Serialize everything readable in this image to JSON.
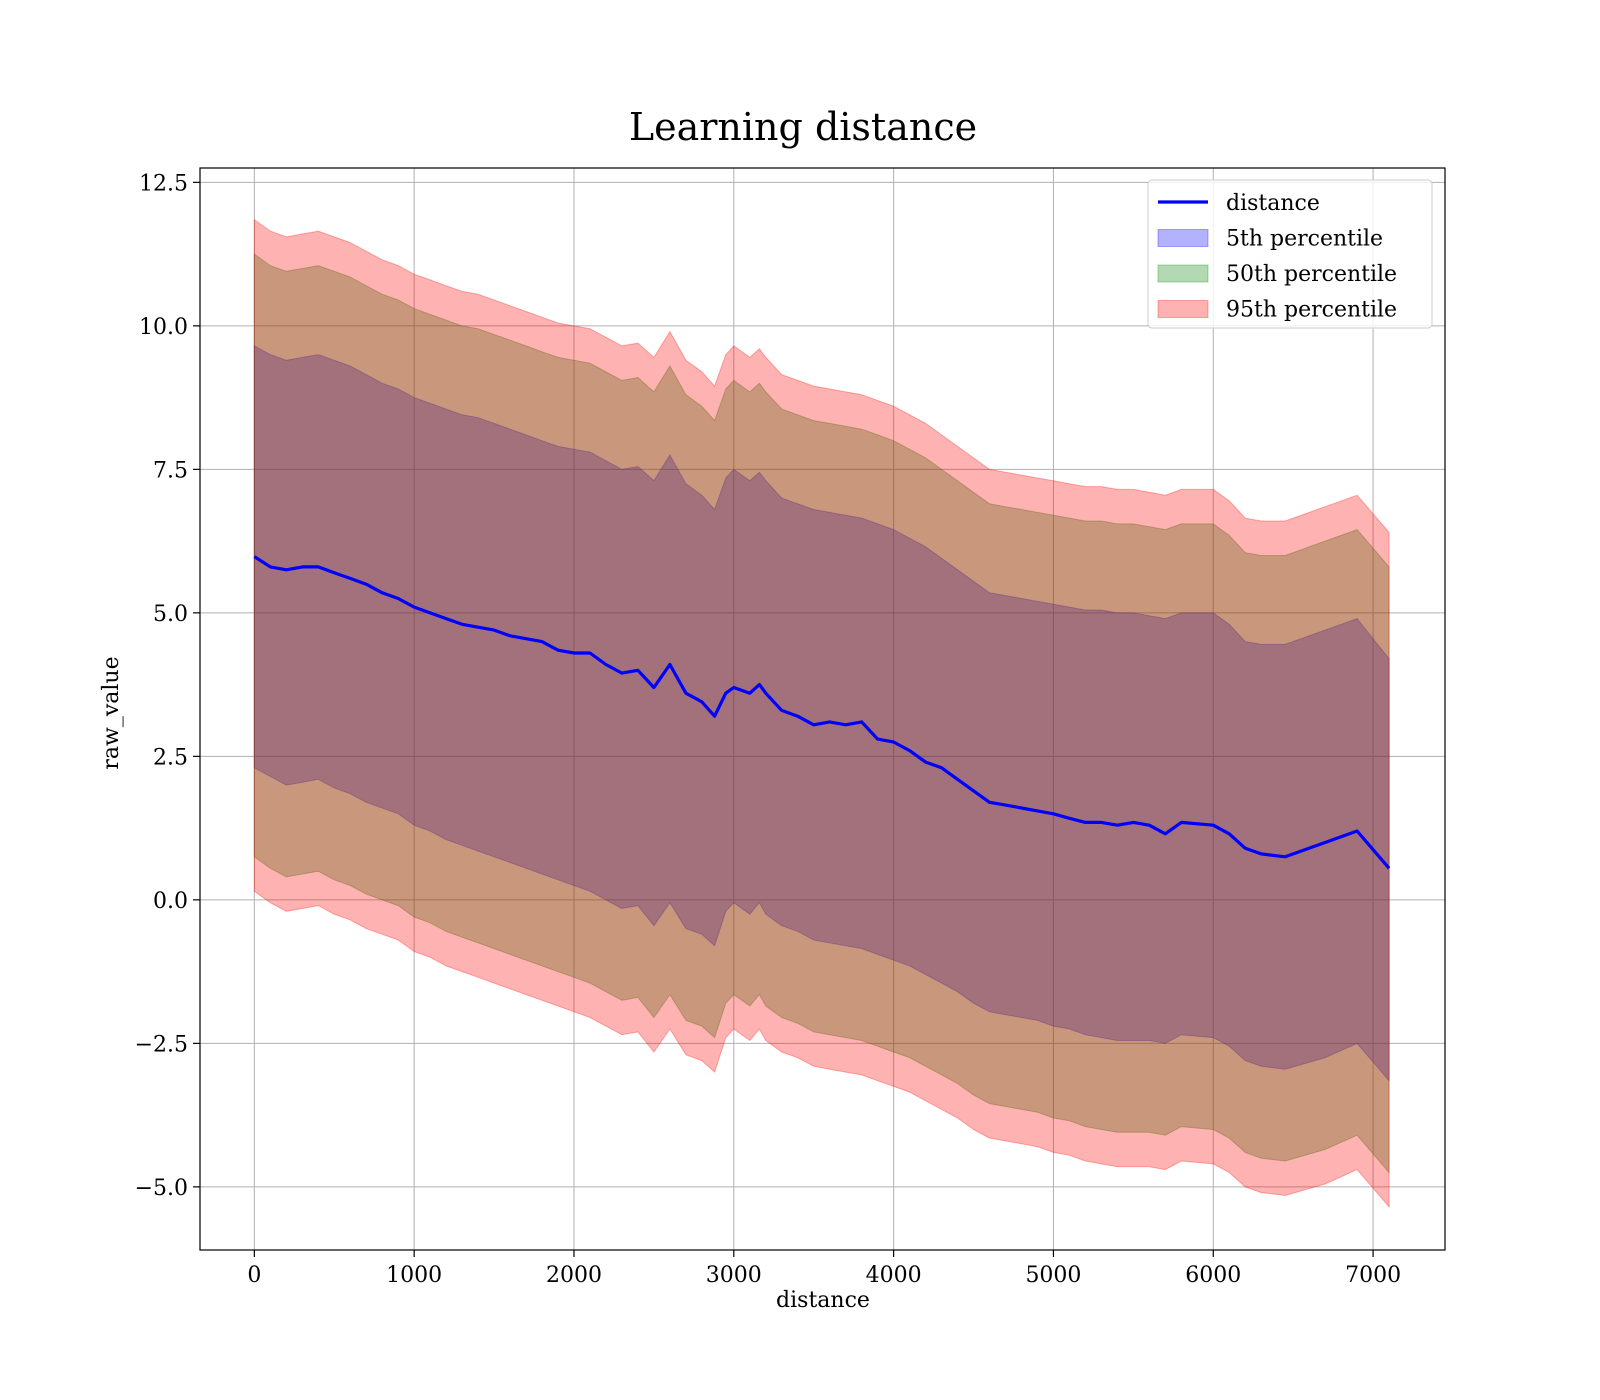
{
  "chart_data": {
    "type": "line",
    "title": "Learning distance",
    "xlabel": "distance",
    "ylabel": "raw_value",
    "xlim": [
      -340,
      7450
    ],
    "ylim": [
      -6.1,
      12.75
    ],
    "xticks": [
      0,
      1000,
      2000,
      3000,
      4000,
      5000,
      6000,
      7000
    ],
    "yticks": [
      -5.0,
      -2.5,
      0.0,
      2.5,
      5.0,
      7.5,
      10.0,
      12.5
    ],
    "xtick_labels": [
      "0",
      "1000",
      "2000",
      "3000",
      "4000",
      "5000",
      "6000",
      "7000"
    ],
    "ytick_labels": [
      "−5.0",
      "−2.5",
      "0.0",
      "2.5",
      "5.0",
      "7.5",
      "10.0",
      "12.5"
    ],
    "grid": true,
    "legend_position": "top-right",
    "x": [
      0,
      100,
      200,
      300,
      400,
      500,
      600,
      700,
      800,
      900,
      1000,
      1100,
      1200,
      1300,
      1400,
      1500,
      1600,
      1700,
      1800,
      1900,
      2000,
      2100,
      2200,
      2300,
      2400,
      2500,
      2600,
      2700,
      2800,
      2880,
      2950,
      3000,
      3100,
      3160,
      3200,
      3300,
      3400,
      3500,
      3600,
      3700,
      3800,
      3900,
      4000,
      4100,
      4200,
      4300,
      4400,
      4500,
      4600,
      4700,
      4800,
      4900,
      5000,
      5100,
      5200,
      5300,
      5400,
      5500,
      5600,
      5700,
      5800,
      6000,
      6100,
      6200,
      6300,
      6450,
      6700,
      6900,
      7100
    ],
    "series": [
      {
        "name": "distance",
        "kind": "line",
        "color": "#0000ff",
        "values": [
          5.98,
          5.8,
          5.75,
          5.8,
          5.8,
          5.7,
          5.6,
          5.5,
          5.35,
          5.25,
          5.1,
          5.0,
          4.9,
          4.8,
          4.75,
          4.7,
          4.6,
          4.55,
          4.5,
          4.35,
          4.3,
          4.3,
          4.1,
          3.95,
          4.0,
          3.7,
          4.1,
          3.6,
          3.45,
          3.2,
          3.6,
          3.7,
          3.6,
          3.75,
          3.6,
          3.3,
          3.2,
          3.05,
          3.1,
          3.05,
          3.1,
          2.8,
          2.75,
          2.6,
          2.4,
          2.3,
          2.1,
          1.9,
          1.7,
          1.65,
          1.6,
          1.55,
          1.5,
          1.42,
          1.35,
          1.35,
          1.3,
          1.35,
          1.3,
          1.15,
          1.35,
          1.3,
          1.15,
          0.9,
          0.8,
          0.75,
          1.0,
          1.2,
          0.55
        ]
      },
      {
        "name": "5th percentile",
        "kind": "band",
        "color": "#0000ff",
        "lower": [
          2.3,
          2.15,
          2.0,
          2.05,
          2.1,
          1.95,
          1.85,
          1.7,
          1.6,
          1.5,
          1.3,
          1.2,
          1.05,
          0.95,
          0.85,
          0.75,
          0.65,
          0.55,
          0.45,
          0.35,
          0.25,
          0.15,
          0.0,
          -0.15,
          -0.1,
          -0.45,
          -0.05,
          -0.5,
          -0.6,
          -0.8,
          -0.2,
          -0.05,
          -0.25,
          -0.05,
          -0.25,
          -0.45,
          -0.55,
          -0.7,
          -0.75,
          -0.8,
          -0.85,
          -0.95,
          -1.05,
          -1.15,
          -1.3,
          -1.45,
          -1.6,
          -1.8,
          -1.95,
          -2.0,
          -2.05,
          -2.1,
          -2.2,
          -2.25,
          -2.35,
          -2.4,
          -2.45,
          -2.45,
          -2.45,
          -2.5,
          -2.35,
          -2.4,
          -2.55,
          -2.8,
          -2.9,
          -2.95,
          -2.75,
          -2.5,
          -3.15
        ],
        "upper": [
          9.65,
          9.5,
          9.4,
          9.45,
          9.5,
          9.4,
          9.3,
          9.15,
          9.0,
          8.9,
          8.75,
          8.65,
          8.55,
          8.45,
          8.4,
          8.3,
          8.2,
          8.1,
          8.0,
          7.9,
          7.85,
          7.8,
          7.65,
          7.5,
          7.55,
          7.3,
          7.75,
          7.25,
          7.05,
          6.8,
          7.35,
          7.5,
          7.3,
          7.45,
          7.3,
          7.0,
          6.9,
          6.8,
          6.75,
          6.7,
          6.65,
          6.55,
          6.45,
          6.3,
          6.15,
          5.95,
          5.75,
          5.55,
          5.35,
          5.3,
          5.25,
          5.2,
          5.15,
          5.1,
          5.05,
          5.05,
          5.0,
          5.0,
          4.95,
          4.9,
          5.0,
          5.0,
          4.8,
          4.5,
          4.45,
          4.45,
          4.7,
          4.9,
          4.2
        ]
      },
      {
        "name": "50th percentile",
        "kind": "band",
        "color": "#008000",
        "lower": [
          0.75,
          0.55,
          0.4,
          0.45,
          0.5,
          0.35,
          0.25,
          0.1,
          0.0,
          -0.1,
          -0.3,
          -0.4,
          -0.55,
          -0.65,
          -0.75,
          -0.85,
          -0.95,
          -1.05,
          -1.15,
          -1.25,
          -1.35,
          -1.45,
          -1.6,
          -1.75,
          -1.7,
          -2.05,
          -1.65,
          -2.1,
          -2.2,
          -2.4,
          -1.8,
          -1.65,
          -1.85,
          -1.65,
          -1.85,
          -2.05,
          -2.15,
          -2.3,
          -2.35,
          -2.4,
          -2.45,
          -2.55,
          -2.65,
          -2.75,
          -2.9,
          -3.05,
          -3.2,
          -3.4,
          -3.55,
          -3.6,
          -3.65,
          -3.7,
          -3.8,
          -3.85,
          -3.95,
          -4.0,
          -4.05,
          -4.05,
          -4.05,
          -4.1,
          -3.95,
          -4.0,
          -4.15,
          -4.4,
          -4.5,
          -4.55,
          -4.35,
          -4.1,
          -4.75
        ],
        "upper": [
          11.25,
          11.05,
          10.95,
          11.0,
          11.05,
          10.95,
          10.85,
          10.7,
          10.55,
          10.45,
          10.3,
          10.2,
          10.1,
          10.0,
          9.95,
          9.85,
          9.75,
          9.65,
          9.55,
          9.45,
          9.4,
          9.35,
          9.2,
          9.05,
          9.1,
          8.85,
          9.3,
          8.8,
          8.6,
          8.35,
          8.9,
          9.05,
          8.85,
          9.0,
          8.85,
          8.55,
          8.45,
          8.35,
          8.3,
          8.25,
          8.2,
          8.1,
          8.0,
          7.85,
          7.7,
          7.5,
          7.3,
          7.1,
          6.9,
          6.85,
          6.8,
          6.75,
          6.7,
          6.65,
          6.6,
          6.6,
          6.55,
          6.55,
          6.5,
          6.45,
          6.55,
          6.55,
          6.35,
          6.05,
          6.0,
          6.0,
          6.25,
          6.45,
          5.8
        ]
      },
      {
        "name": "95th percentile",
        "kind": "band",
        "color": "#ff0000",
        "lower": [
          0.15,
          -0.05,
          -0.2,
          -0.15,
          -0.1,
          -0.25,
          -0.35,
          -0.5,
          -0.6,
          -0.7,
          -0.9,
          -1.0,
          -1.15,
          -1.25,
          -1.35,
          -1.45,
          -1.55,
          -1.65,
          -1.75,
          -1.85,
          -1.95,
          -2.05,
          -2.2,
          -2.35,
          -2.3,
          -2.65,
          -2.25,
          -2.7,
          -2.8,
          -3.0,
          -2.4,
          -2.25,
          -2.45,
          -2.25,
          -2.45,
          -2.65,
          -2.75,
          -2.9,
          -2.95,
          -3.0,
          -3.05,
          -3.15,
          -3.25,
          -3.35,
          -3.5,
          -3.65,
          -3.8,
          -4.0,
          -4.15,
          -4.2,
          -4.25,
          -4.3,
          -4.4,
          -4.45,
          -4.55,
          -4.6,
          -4.65,
          -4.65,
          -4.65,
          -4.7,
          -4.55,
          -4.6,
          -4.75,
          -5.0,
          -5.1,
          -5.15,
          -4.95,
          -4.7,
          -5.35
        ],
        "upper": [
          11.85,
          11.65,
          11.55,
          11.6,
          11.65,
          11.55,
          11.45,
          11.3,
          11.15,
          11.05,
          10.9,
          10.8,
          10.7,
          10.6,
          10.55,
          10.45,
          10.35,
          10.25,
          10.15,
          10.05,
          10.0,
          9.95,
          9.8,
          9.65,
          9.7,
          9.45,
          9.9,
          9.4,
          9.2,
          8.95,
          9.5,
          9.65,
          9.45,
          9.6,
          9.45,
          9.15,
          9.05,
          8.95,
          8.9,
          8.85,
          8.8,
          8.7,
          8.6,
          8.45,
          8.3,
          8.1,
          7.9,
          7.7,
          7.5,
          7.45,
          7.4,
          7.35,
          7.3,
          7.25,
          7.2,
          7.2,
          7.15,
          7.15,
          7.1,
          7.05,
          7.15,
          7.15,
          6.95,
          6.65,
          6.6,
          6.6,
          6.85,
          7.05,
          6.4
        ]
      }
    ]
  }
}
